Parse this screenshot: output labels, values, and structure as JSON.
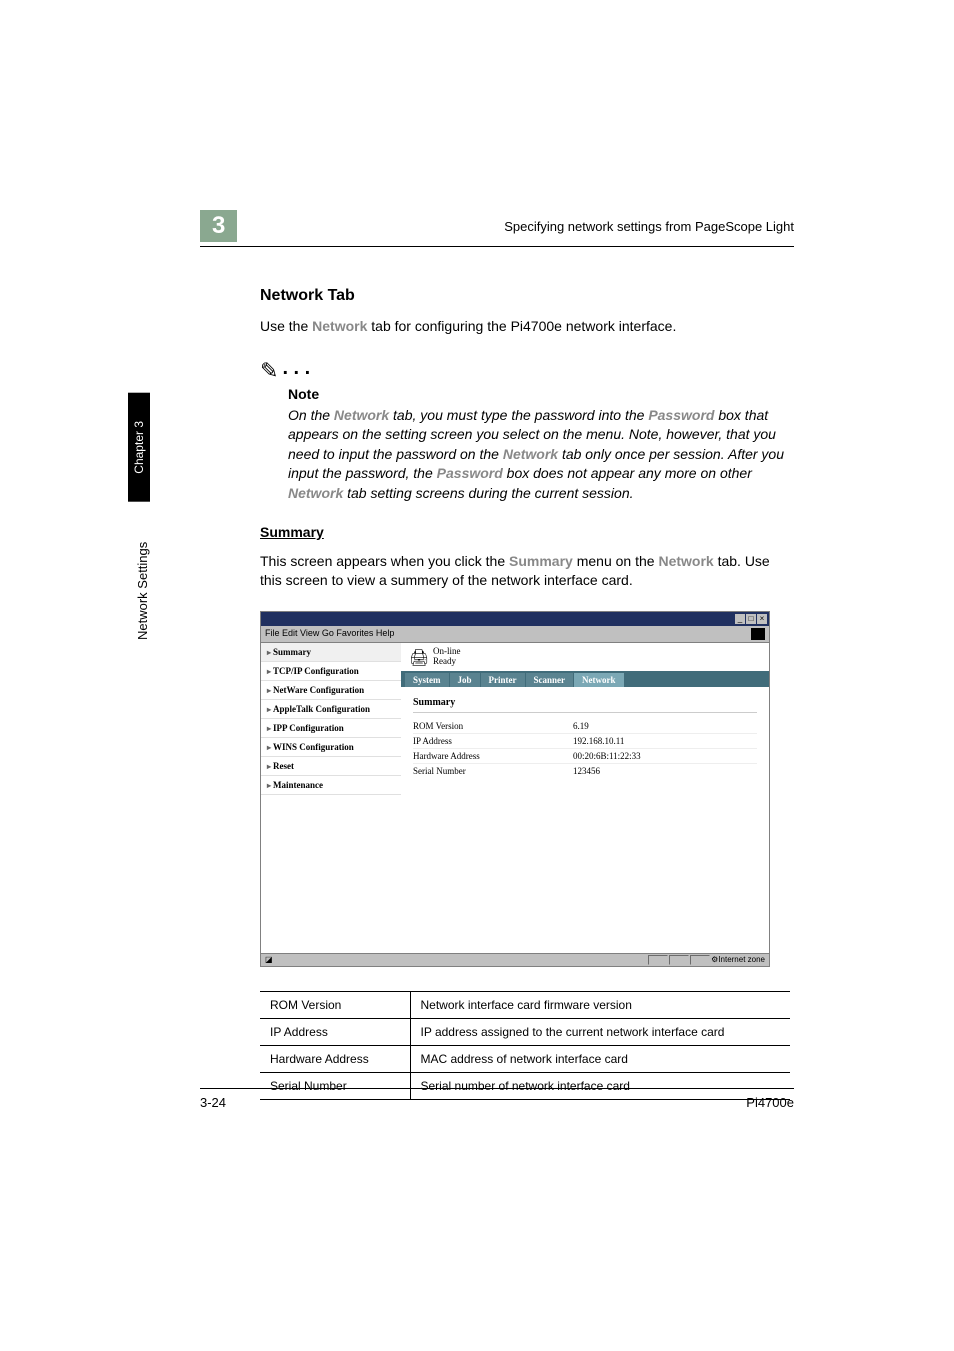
{
  "header": {
    "chapter_number": "3",
    "title": "Specifying network settings from PageScope Light"
  },
  "side": {
    "vertical_text": "Network Settings",
    "chapter_label": "Chapter 3"
  },
  "section": {
    "title": "Network Tab",
    "intro_prefix": "Use the ",
    "intro_network_word": "Network",
    "intro_suffix": " tab for configuring the Pi4700e network interface."
  },
  "note": {
    "label": "Note",
    "p1_a": "On the ",
    "p1_network": "Network",
    "p1_b": " tab, you must type the password into the ",
    "p1_password": "Password",
    "p1_c": " box that appears on the setting screen you select on the menu. Note, however, that you need to input the password on the ",
    "p1_network2": "Network",
    "p1_d": " tab only once per session. After you input the password, the ",
    "p1_password2": "Password",
    "p1_e": " box does not appear any more on other ",
    "p1_network3": "Network",
    "p1_f": " tab setting screens during the current session."
  },
  "summary": {
    "heading": "Summary",
    "desc_a": "This screen appears when you click the ",
    "desc_summary": "Summary",
    "desc_b": " menu on the ",
    "desc_network": "Network",
    "desc_c": " tab. Use this screen to view a summery of the network interface card."
  },
  "browser": {
    "menu": "File   Edit   View   Go   Favorites   Help",
    "status": {
      "line1": "On-line",
      "line2": "Ready"
    },
    "tabs": [
      "System",
      "Job",
      "Printer",
      "Scanner",
      "Network"
    ],
    "active_tab_index": 4,
    "sidebar_items": [
      "Summary",
      "TCP/IP Configuration",
      "NetWare Configuration",
      "AppleTalk Configuration",
      "IPP Configuration",
      "WINS Configuration",
      "Reset",
      "Maintenance"
    ],
    "active_sidebar_index": 0,
    "panel": {
      "heading": "Summary",
      "rows": [
        {
          "label": "ROM Version",
          "value": "6.19"
        },
        {
          "label": "IP Address",
          "value": "192.168.10.11"
        },
        {
          "label": "Hardware Address",
          "value": "00:20:6B:11:22:33"
        },
        {
          "label": "Serial Number",
          "value": "123456"
        }
      ]
    },
    "statusbar_zone": "Internet zone"
  },
  "info_table": {
    "rows": [
      {
        "label": "ROM Version",
        "desc": "Network interface card firmware version"
      },
      {
        "label": "IP Address",
        "desc": "IP address assigned to the current network interface card"
      },
      {
        "label": "Hardware Address",
        "desc": "MAC address of network interface card"
      },
      {
        "label": "Serial Number",
        "desc": "Serial number of network interface card"
      }
    ]
  },
  "footer": {
    "page": "3-24",
    "product": "Pi4700e"
  },
  "colors": {
    "chapter_bg": "#8aa890",
    "styled_text": "#888888",
    "tab_bg": "#416c7a",
    "tab_item_bg": "#5a8390",
    "tab_active_bg": "#7ba8b5"
  }
}
